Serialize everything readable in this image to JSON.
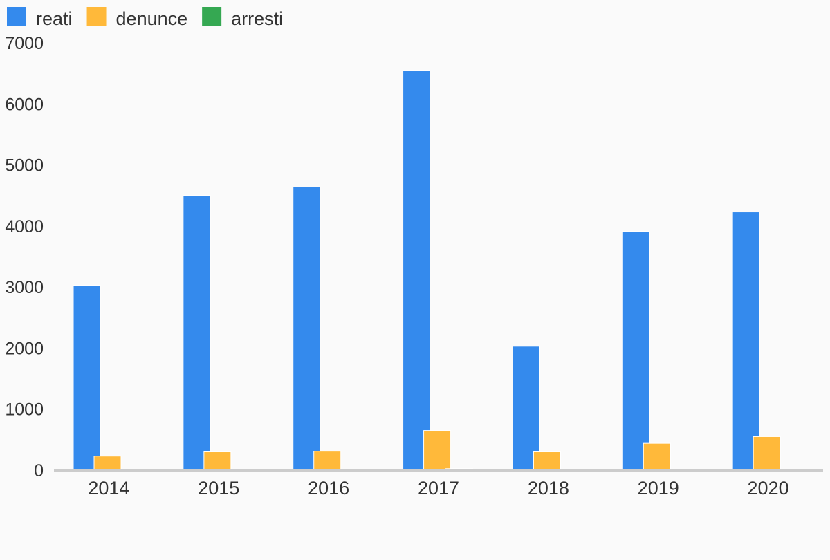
{
  "chart_data": {
    "type": "bar",
    "title": "",
    "xlabel": "",
    "ylabel": "",
    "categories": [
      "2014",
      "2015",
      "2016",
      "2017",
      "2018",
      "2019",
      "2020"
    ],
    "series": [
      {
        "name": "reati",
        "color": "#348aed",
        "values": [
          3030,
          4500,
          4640,
          6550,
          2030,
          3910,
          4230
        ]
      },
      {
        "name": "denunce",
        "color": "#ffb93a",
        "values": [
          230,
          300,
          310,
          650,
          300,
          440,
          550
        ]
      },
      {
        "name": "arresti",
        "color": "#35a852",
        "values": [
          0,
          0,
          0,
          25,
          0,
          0,
          6
        ]
      }
    ],
    "ylim": [
      0,
      7000
    ],
    "yticks": [
      0,
      1000,
      2000,
      3000,
      4000,
      5000,
      6000,
      7000
    ],
    "grid": false,
    "legend_position": "top-left"
  }
}
